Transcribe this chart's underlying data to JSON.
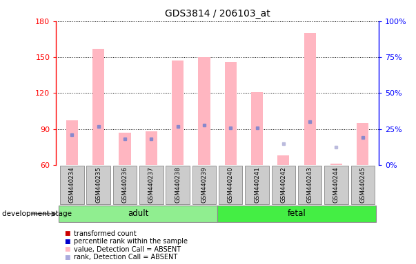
{
  "title": "GDS3814 / 206103_at",
  "samples": [
    "GSM440234",
    "GSM440235",
    "GSM440236",
    "GSM440237",
    "GSM440238",
    "GSM440239",
    "GSM440240",
    "GSM440241",
    "GSM440242",
    "GSM440243",
    "GSM440244",
    "GSM440245"
  ],
  "bar_tops": [
    97,
    157,
    87,
    88,
    147,
    150,
    146,
    121,
    68,
    170,
    61,
    95
  ],
  "bar_bottoms": [
    60,
    60,
    60,
    60,
    60,
    60,
    60,
    60,
    60,
    60,
    60,
    60
  ],
  "rank_dots": [
    85,
    92,
    82,
    82,
    92,
    93,
    91,
    91,
    null,
    96,
    null,
    83
  ],
  "rank_absent_dots": [
    null,
    null,
    null,
    null,
    null,
    null,
    null,
    null,
    78,
    null,
    75,
    null
  ],
  "ylim_left": [
    60,
    180
  ],
  "ylim_right": [
    0,
    100
  ],
  "yticks_left": [
    60,
    90,
    120,
    150,
    180
  ],
  "yticks_right": [
    0,
    25,
    50,
    75,
    100
  ],
  "ytick_labels_right": [
    "0%",
    "25%",
    "50%",
    "75%",
    "100%"
  ],
  "bar_color_present": "#FFB6C1",
  "bar_color_absent": "#FFB6C1",
  "rank_dot_color_present": "#8888CC",
  "rank_dot_color_absent": "#BBBBDD",
  "adult_samples": [
    0,
    1,
    2,
    3,
    4,
    5
  ],
  "fetal_samples": [
    6,
    7,
    8,
    9,
    10,
    11
  ],
  "adult_color": "#90EE90",
  "fetal_color": "#44DD44",
  "absent_indices": [
    8,
    10
  ],
  "legend_items": [
    {
      "label": "transformed count",
      "color": "#CC0000"
    },
    {
      "label": "percentile rank within the sample",
      "color": "#0000CC"
    },
    {
      "label": "value, Detection Call = ABSENT",
      "color": "#FFB6C1"
    },
    {
      "label": "rank, Detection Call = ABSENT",
      "color": "#AAAADD"
    }
  ]
}
